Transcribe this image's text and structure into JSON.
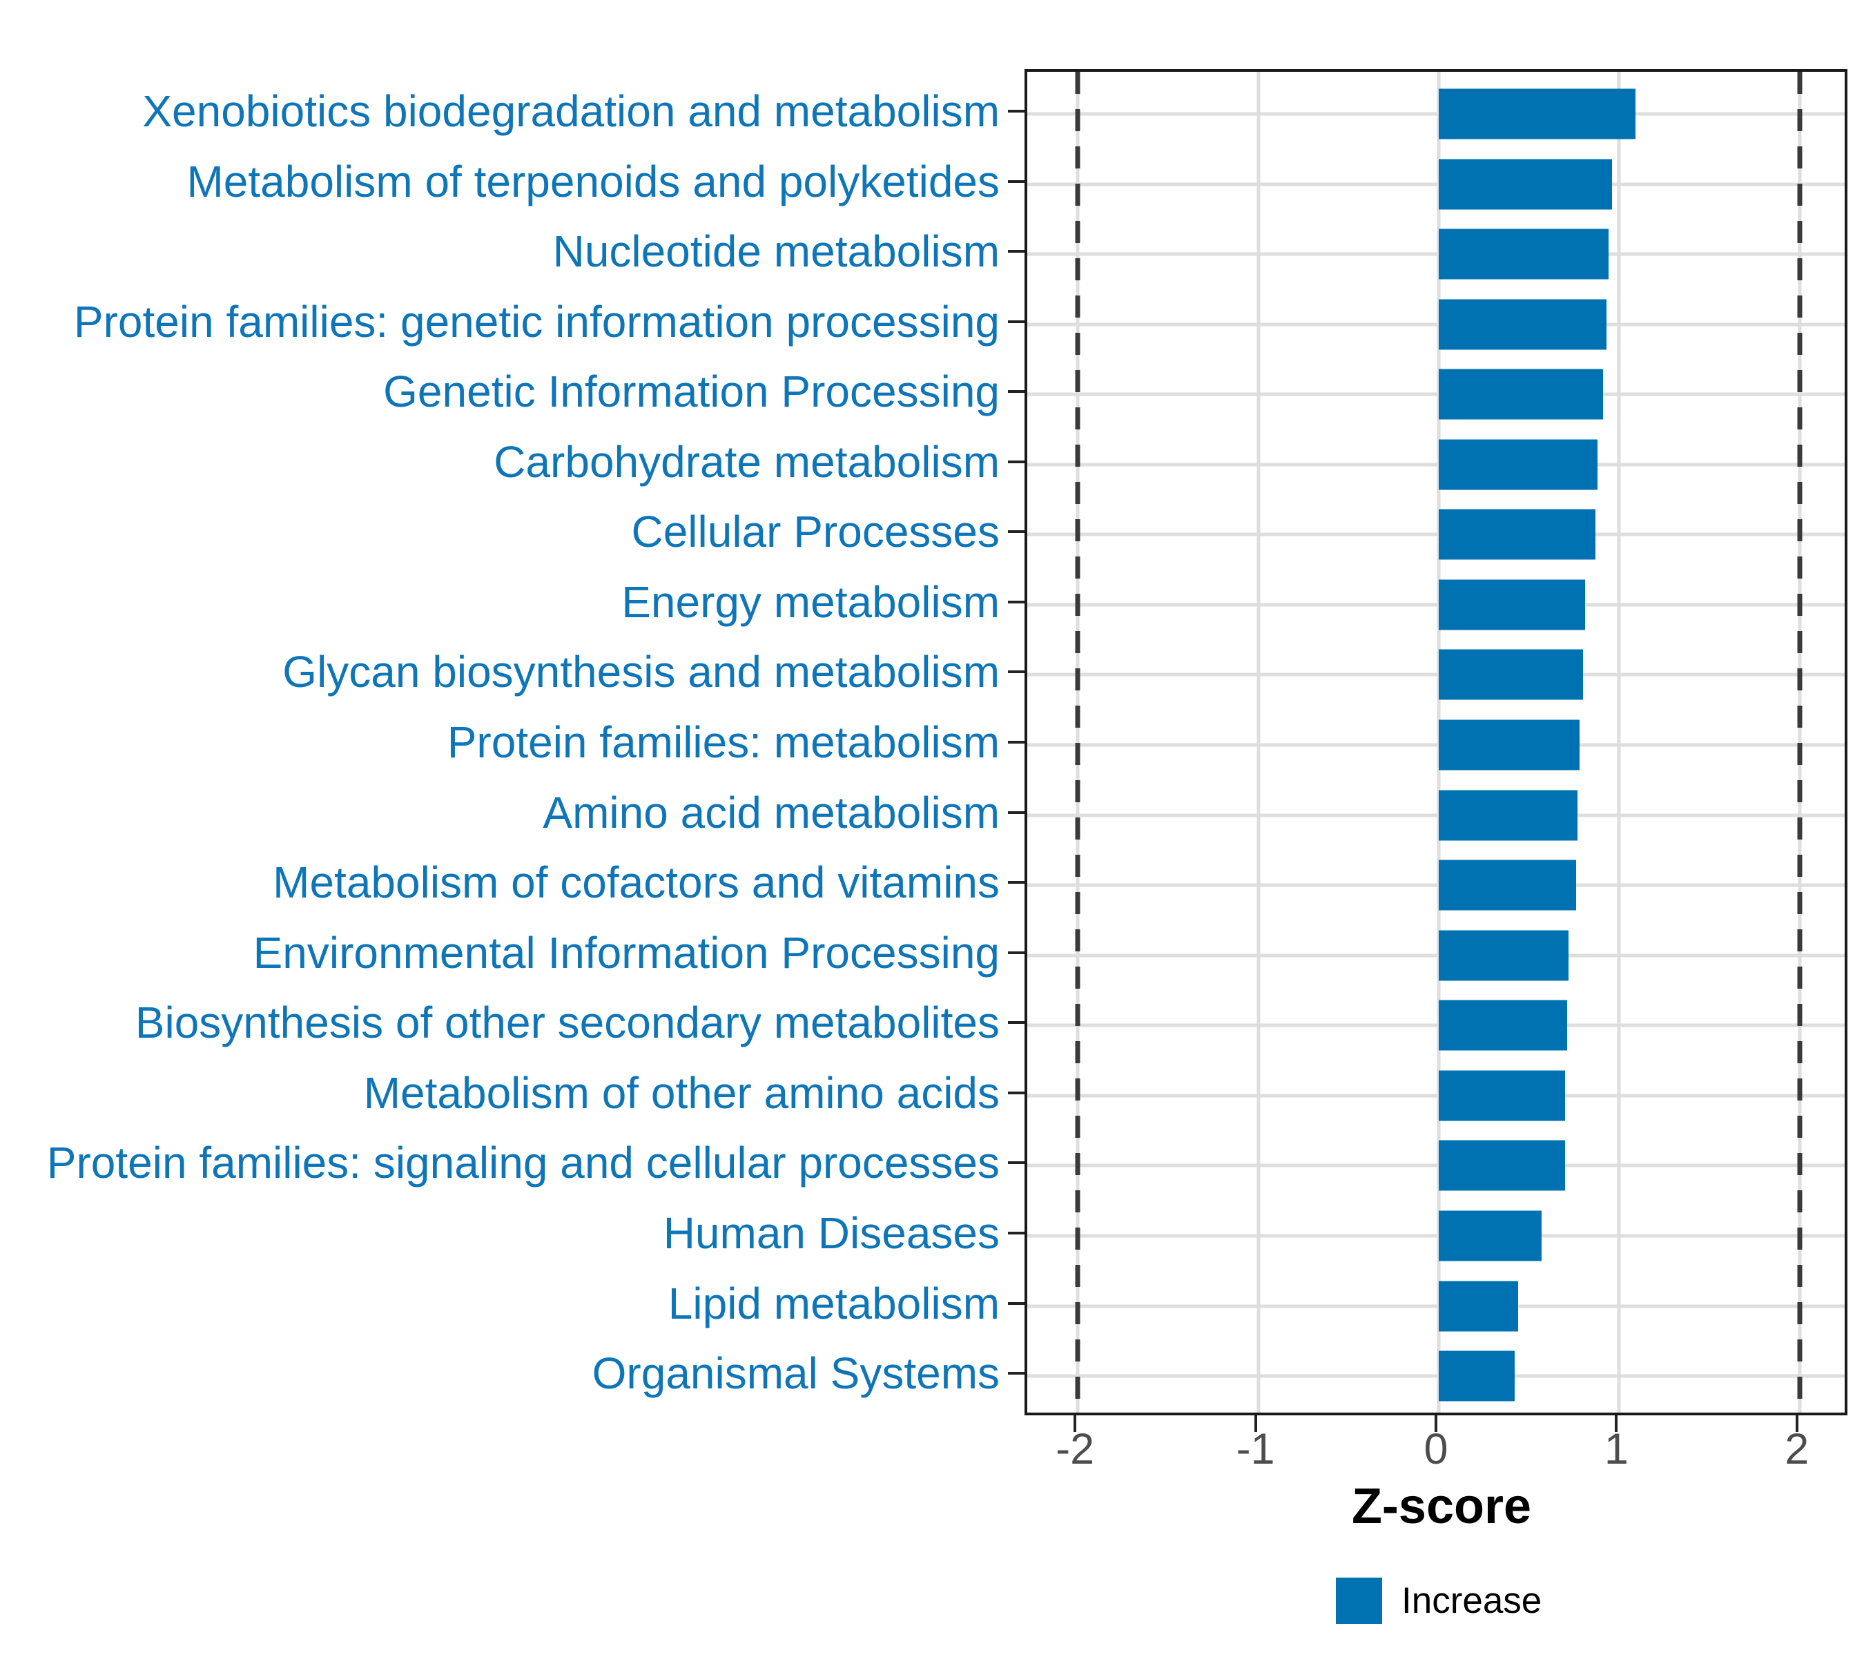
{
  "chart_data": {
    "type": "bar",
    "orientation": "horizontal",
    "title": "",
    "xlabel": "Z-score",
    "ylabel": "",
    "categories": [
      "Xenobiotics biodegradation and metabolism",
      "Metabolism of terpenoids and polyketides",
      "Nucleotide metabolism",
      "Protein families: genetic information processing",
      "Genetic Information Processing",
      "Carbohydrate metabolism",
      "Cellular Processes",
      "Energy metabolism",
      "Glycan biosynthesis and metabolism",
      "Protein families: metabolism",
      "Amino acid metabolism",
      "Metabolism of cofactors and vitamins",
      "Environmental Information Processing",
      "Biosynthesis of other secondary metabolites",
      "Metabolism of other amino acids",
      "Protein families: signaling and cellular processes",
      "Human Diseases",
      "Lipid metabolism",
      "Organismal Systems"
    ],
    "series": [
      {
        "name": "Increase",
        "values": [
          1.09,
          0.96,
          0.94,
          0.93,
          0.91,
          0.88,
          0.87,
          0.81,
          0.8,
          0.78,
          0.77,
          0.76,
          0.72,
          0.71,
          0.7,
          0.7,
          0.57,
          0.44,
          0.42
        ]
      }
    ],
    "xlim": [
      -2.28,
      2.28
    ],
    "xticks": [
      -2,
      -1,
      0,
      1,
      2
    ],
    "xtick_labels": [
      "-2",
      "-1",
      "0",
      "1",
      "2"
    ],
    "reference_lines": [
      -2,
      2
    ],
    "grid": true,
    "legend_position": "bottom"
  },
  "legend": {
    "label": "Increase"
  },
  "colors": {
    "bar": "#0072B2",
    "category_label": "#0E76B8",
    "axis_tick_text": "#4D4D4D",
    "grid_line": "#DEDEDE",
    "dashed_line": "#3A3A3A",
    "panel_border": "#1A1A1A",
    "tick_mark": "#222222",
    "background": "#FFFFFF"
  }
}
